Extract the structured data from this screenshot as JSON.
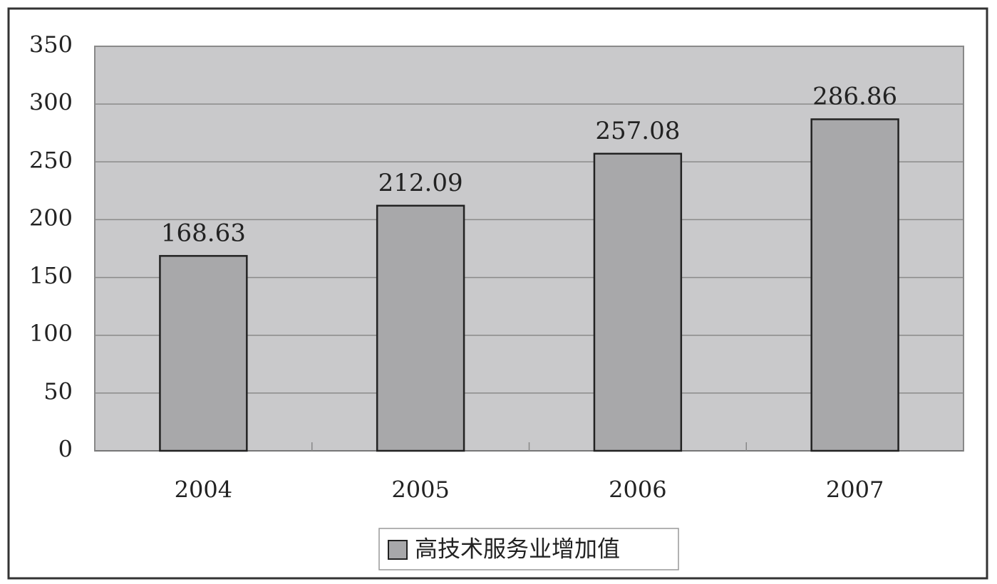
{
  "chart_data": {
    "type": "bar",
    "categories": [
      "2004",
      "2005",
      "2006",
      "2007"
    ],
    "series": [
      {
        "name": "高技术服务业增加值",
        "color": "#a8a8aa",
        "values": [
          168.63,
          212.09,
          257.08,
          286.86
        ]
      }
    ],
    "ylim": [
      0,
      350
    ],
    "yticks": [
      0,
      50,
      100,
      150,
      200,
      250,
      300,
      350
    ],
    "grid": true,
    "legend": "bottom"
  }
}
